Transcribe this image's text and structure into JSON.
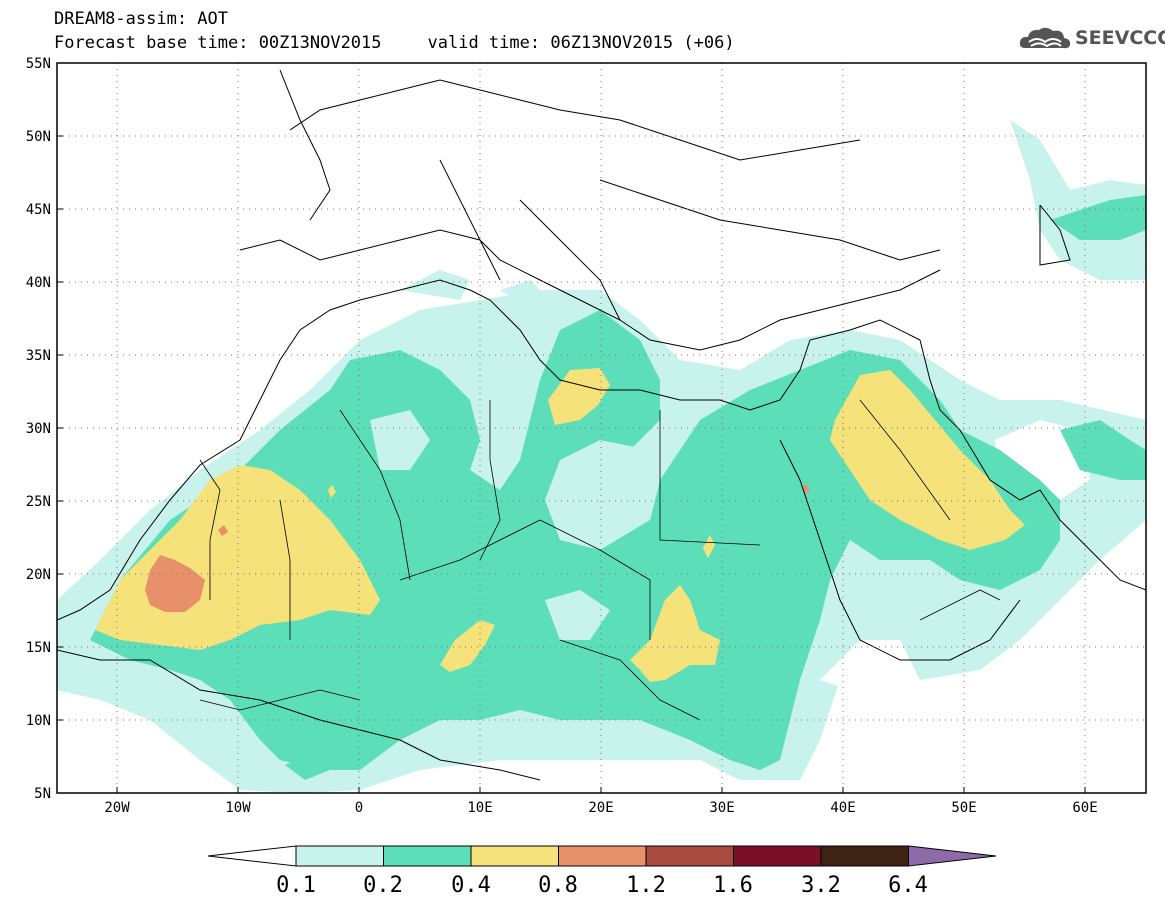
{
  "header": {
    "model_title": "DREAM8-assim: AOT",
    "base_time": "Forecast base time: 00Z13NOV2015",
    "valid_time": "valid time: 06Z13NOV2015 (+06)"
  },
  "logo": {
    "text": "SEEVCCC",
    "icon": "cloud-icon"
  },
  "axes": {
    "lat_labels": [
      "55N",
      "50N",
      "45N",
      "40N",
      "35N",
      "30N",
      "25N",
      "20N",
      "15N",
      "10N",
      "5N"
    ],
    "lon_labels": [
      "20W",
      "10W",
      "0",
      "10E",
      "20E",
      "30E",
      "40E",
      "50E",
      "60E"
    ]
  },
  "colorbar": {
    "labels": [
      "0.1",
      "0.2",
      "0.4",
      "0.8",
      "1.2",
      "1.6",
      "3.2",
      "6.4"
    ],
    "colors": [
      "#ffffff",
      "#c8f3ed",
      "#5cdfb8",
      "#f5e27a",
      "#e8906a",
      "#a94a3e",
      "#7a0f27",
      "#3d2314",
      "#8e6ba8"
    ]
  },
  "map": {
    "variable": "Aerosol optical thickness",
    "level_colors": {
      "low": "#c8f3ed",
      "mid": "#5cdfb8",
      "high": "#f5e27a",
      "very_high": "#e8906a"
    }
  }
}
